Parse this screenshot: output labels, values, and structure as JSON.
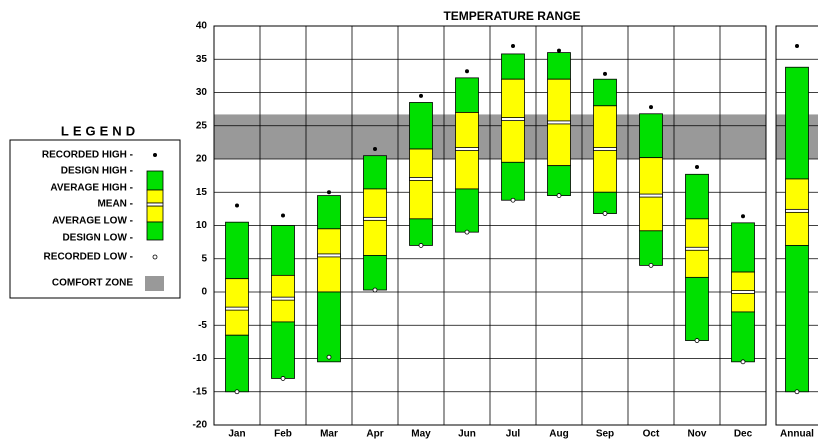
{
  "chart_data": {
    "type": "temperature_range",
    "title": "TEMPERATURE RANGE",
    "legend_title": "LEGEND",
    "categories": [
      "Jan",
      "Feb",
      "Mar",
      "Apr",
      "May",
      "Jun",
      "Jul",
      "Aug",
      "Sep",
      "Oct",
      "Nov",
      "Dec",
      "Annual"
    ],
    "series": [
      {
        "name": "RECORDED HIGH -",
        "color": "#000000",
        "values": [
          13,
          11.5,
          15,
          21.5,
          29.5,
          33.2,
          37,
          36.3,
          32.8,
          27.8,
          18.8,
          11.4,
          37
        ]
      },
      {
        "name": "DESIGN HIGH -",
        "color": "#00e000",
        "values": [
          10.5,
          10,
          14.5,
          20.5,
          28.5,
          32.2,
          35.8,
          36,
          32,
          26.8,
          17.7,
          10.4,
          33.8
        ]
      },
      {
        "name": "AVERAGE HIGH -",
        "color": "#ffff00",
        "values": [
          2,
          2.5,
          9.5,
          15.5,
          21.5,
          27,
          32,
          32,
          28,
          20.2,
          11,
          3,
          17
        ]
      },
      {
        "name": "MEAN -",
        "color": "#ffffff",
        "values": [
          -2.5,
          -1,
          5.5,
          11,
          17,
          21.5,
          26,
          25.5,
          21.5,
          14.5,
          6.5,
          0,
          12.2
        ]
      },
      {
        "name": "AVERAGE LOW -",
        "color": "#ffff00",
        "values": [
          -6.5,
          -4.5,
          0,
          5.5,
          11,
          15.5,
          19.5,
          19,
          15,
          9.2,
          2.2,
          -3,
          7
        ]
      },
      {
        "name": "DESIGN LOW -",
        "color": "#00e000",
        "values": [
          -15,
          -13,
          -10.5,
          0.3,
          7,
          9,
          13.8,
          14.5,
          11.8,
          4,
          -7.3,
          -10.5,
          -15
        ]
      },
      {
        "name": "RECORDED LOW -",
        "color": "#ffffff",
        "values": [
          -15,
          -13,
          -9.8,
          0.3,
          7,
          9,
          13.8,
          14.5,
          11.8,
          4,
          -7.3,
          -10.5,
          -15
        ]
      }
    ],
    "comfort_zone": {
      "label": "COMFORT ZONE",
      "range": [
        20,
        26.7
      ],
      "color": "#999999"
    },
    "ylim": [
      -20,
      40
    ],
    "yticks": [
      -20,
      -15,
      -10,
      -5,
      0,
      5,
      10,
      15,
      20,
      25,
      30,
      35,
      40
    ],
    "grid": true
  }
}
